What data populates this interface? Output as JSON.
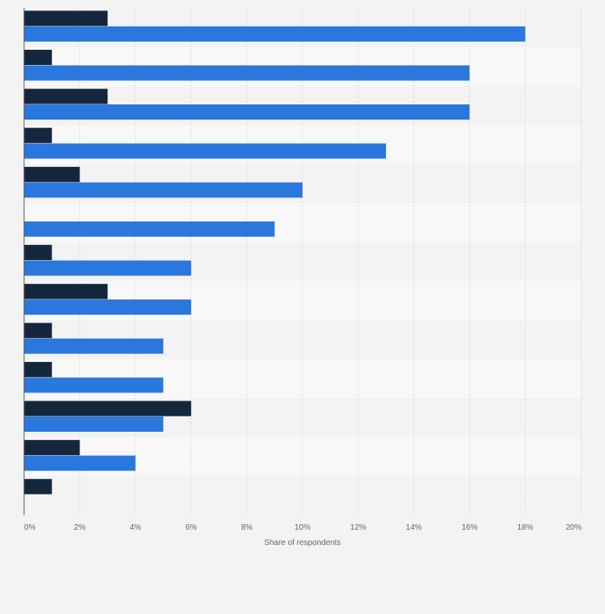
{
  "chart_data": {
    "type": "bar",
    "orientation": "horizontal",
    "title": "",
    "xlabel": "Share of respondents",
    "ylabel": "",
    "xlim": [
      0,
      20
    ],
    "x_ticks": [
      "0%",
      "2%",
      "4%",
      "6%",
      "8%",
      "10%",
      "12%",
      "14%",
      "16%",
      "18%",
      "20%"
    ],
    "grid": true,
    "category_count": 13,
    "series": [
      {
        "name": "series-dark",
        "color": "#14273d",
        "values": [
          3,
          1,
          3,
          1,
          2,
          0,
          1,
          3,
          1,
          1,
          6,
          2,
          1
        ]
      },
      {
        "name": "series-blue",
        "color": "#2a77dd",
        "values": [
          18,
          16,
          16,
          13,
          10,
          9,
          6,
          6,
          5,
          5,
          5,
          4,
          0
        ]
      }
    ]
  }
}
